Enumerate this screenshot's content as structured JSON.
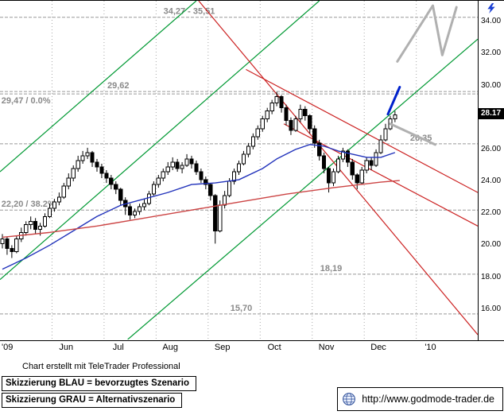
{
  "footer": {
    "note": "Chart erstellt mit TeleTrader Professional",
    "legend_blue": "Skizzierung BLAU = bevorzugtes Szenario",
    "legend_gray": "Skizzierung GRAU = Alternativszenario",
    "url": "http://www.godmode-trader.de"
  },
  "chart_data": {
    "type": "candlestick",
    "title": "",
    "period_shown": "'09 (May) to '10 (Jan)",
    "candle_interval_days": 2,
    "ylim": [
      14.1,
      35.3
    ],
    "time_slots": 101,
    "last_price": 28.17,
    "last_price_label": "28.17",
    "y_ticks": [
      {
        "label": "34.00",
        "price": 34.0
      },
      {
        "label": "32.00",
        "price": 32.0
      },
      {
        "label": "30.00",
        "price": 30.0
      },
      {
        "label": "26.00",
        "price": 26.0
      },
      {
        "label": "24.00",
        "price": 24.0
      },
      {
        "label": "22.00",
        "price": 22.0
      },
      {
        "label": "20.00",
        "price": 20.0
      },
      {
        "label": "18.00",
        "price": 18.0
      },
      {
        "label": "16.00",
        "price": 16.0
      }
    ],
    "x_labels": [
      {
        "label": "'09",
        "slot": 0.5
      },
      {
        "label": "Jun",
        "slot": 14
      },
      {
        "label": "Jul",
        "slot": 25
      },
      {
        "label": "Aug",
        "slot": 36
      },
      {
        "label": "Sep",
        "slot": 47
      },
      {
        "label": "Oct",
        "slot": 58
      },
      {
        "label": "Nov",
        "slot": 69
      },
      {
        "label": "Dec",
        "slot": 80
      },
      {
        "label": "'10",
        "slot": 91
      }
    ],
    "month_gridline_slots": [
      11,
      22,
      33,
      44,
      55,
      66,
      77,
      88
    ],
    "levels": [
      {
        "price": 34.27,
        "label": "34,27 - 35,51",
        "label_slot": 40,
        "anchor": "middle",
        "label_below": false
      },
      {
        "price": 29.62,
        "label": "29,62",
        "label_slot": 25,
        "anchor": "middle",
        "label_below": false
      },
      {
        "price": 29.47,
        "label": "29,47 / 0.0%",
        "label_slot": 0.3,
        "anchor": "start",
        "label_below": true
      },
      {
        "price": 26.35,
        "label": "26,35",
        "label_slot": 89,
        "anchor": "middle",
        "label_below": false
      },
      {
        "price": 22.2,
        "label": "22,20 / 38.2%",
        "label_slot": 0.3,
        "anchor": "start",
        "label_below": false
      },
      {
        "price": 18.19,
        "label": "18,19",
        "label_slot": 70,
        "anchor": "middle",
        "label_below": false
      },
      {
        "price": 15.7,
        "label": "15,70",
        "label_slot": 51,
        "anchor": "middle",
        "label_below": false
      }
    ],
    "trendlines": [
      {
        "color": "green",
        "points": [
          [
            0,
            24.6
          ],
          [
            41.5,
            35.3
          ]
        ]
      },
      {
        "color": "green",
        "points": [
          [
            0,
            17.85
          ],
          [
            67.5,
            35.3
          ]
        ]
      },
      {
        "color": "green",
        "points": [
          [
            27,
            14.1
          ],
          [
            101,
            32.9
          ]
        ]
      },
      {
        "color": "red",
        "points": [
          [
            42,
            35.3
          ],
          [
            101,
            14.4
          ]
        ]
      },
      {
        "color": "red",
        "points": [
          [
            52,
            31.0
          ],
          [
            101,
            23.3
          ]
        ]
      },
      {
        "color": "red",
        "points": [
          [
            60,
            27.6
          ],
          [
            101,
            21.2
          ]
        ]
      }
    ],
    "moving_averages": [
      {
        "name": "ma-fast-blue",
        "color": "#2233bb",
        "points": [
          [
            0,
            18.5
          ],
          [
            5,
            19.2
          ],
          [
            10,
            20.0
          ],
          [
            15,
            20.9
          ],
          [
            20,
            21.8
          ],
          [
            25,
            22.5
          ],
          [
            30,
            22.9
          ],
          [
            35,
            23.3
          ],
          [
            40,
            23.8
          ],
          [
            45,
            23.9
          ],
          [
            50,
            24.1
          ],
          [
            55,
            24.8
          ],
          [
            58,
            25.4
          ],
          [
            62,
            26.0
          ],
          [
            65,
            26.3
          ],
          [
            68,
            26.2
          ],
          [
            71,
            25.9
          ],
          [
            74,
            25.7
          ],
          [
            77,
            25.5
          ],
          [
            80,
            25.5
          ],
          [
            83,
            25.8
          ]
        ]
      },
      {
        "name": "ma-slow-red",
        "color": "#cc4444",
        "points": [
          [
            0,
            20.5
          ],
          [
            10,
            20.8
          ],
          [
            20,
            21.2
          ],
          [
            30,
            21.7
          ],
          [
            40,
            22.2
          ],
          [
            50,
            22.7
          ],
          [
            60,
            23.2
          ],
          [
            70,
            23.6
          ],
          [
            80,
            23.95
          ],
          [
            84,
            24.05
          ]
        ]
      }
    ],
    "sketches": [
      {
        "name": "preferred-blue",
        "color": "#0022cc",
        "width": 3,
        "points": [
          [
            82,
            28.2
          ],
          [
            84.5,
            29.9
          ]
        ]
      },
      {
        "name": "alternative-gray-target",
        "color": "#b0b0b0",
        "width": 3,
        "points": [
          [
            84,
            31.5
          ],
          [
            91.5,
            35.0
          ],
          [
            93.5,
            31.9
          ],
          [
            96.5,
            34.9
          ]
        ]
      },
      {
        "name": "alternative-gray-pullback",
        "color": "#b0b0b0",
        "width": 3,
        "points": [
          [
            82.5,
            27.6
          ],
          [
            92,
            26.3
          ]
        ]
      }
    ],
    "candles": [
      [
        20.1,
        20.7,
        19.8,
        20.4
      ],
      [
        20.4,
        20.5,
        19.4,
        19.8
      ],
      [
        19.8,
        20.0,
        19.2,
        19.6
      ],
      [
        19.6,
        20.6,
        19.5,
        20.4
      ],
      [
        20.4,
        21.1,
        20.2,
        20.8
      ],
      [
        20.8,
        21.5,
        20.6,
        21.3
      ],
      [
        21.3,
        21.8,
        21.0,
        21.5
      ],
      [
        21.5,
        21.7,
        20.7,
        21.0
      ],
      [
        21.0,
        21.4,
        20.6,
        21.2
      ],
      [
        21.2,
        22.0,
        21.1,
        21.8
      ],
      [
        21.8,
        22.6,
        21.7,
        22.3
      ],
      [
        22.3,
        22.9,
        22.1,
        22.7
      ],
      [
        22.7,
        23.3,
        22.5,
        23.0
      ],
      [
        23.0,
        23.9,
        22.9,
        23.7
      ],
      [
        23.7,
        24.5,
        23.5,
        24.2
      ],
      [
        24.2,
        25.0,
        24.0,
        24.8
      ],
      [
        24.8,
        25.6,
        24.6,
        25.3
      ],
      [
        25.3,
        25.9,
        25.1,
        25.6
      ],
      [
        25.6,
        26.1,
        25.4,
        25.8
      ],
      [
        25.8,
        25.9,
        24.9,
        25.2
      ],
      [
        25.2,
        25.4,
        24.6,
        24.9
      ],
      [
        24.9,
        25.1,
        24.2,
        24.5
      ],
      [
        24.5,
        24.7,
        23.9,
        24.2
      ],
      [
        24.2,
        24.4,
        23.5,
        23.8
      ],
      [
        23.8,
        24.0,
        23.2,
        23.5
      ],
      [
        23.5,
        23.6,
        22.5,
        22.8
      ],
      [
        22.8,
        23.0,
        21.9,
        22.4
      ],
      [
        22.4,
        22.6,
        21.6,
        21.9
      ],
      [
        21.9,
        22.3,
        21.7,
        22.1
      ],
      [
        22.1,
        22.6,
        21.9,
        22.4
      ],
      [
        22.4,
        22.9,
        22.2,
        22.6
      ],
      [
        22.6,
        23.4,
        22.5,
        23.2
      ],
      [
        23.2,
        24.0,
        23.1,
        23.8
      ],
      [
        23.8,
        24.4,
        23.6,
        24.2
      ],
      [
        24.2,
        24.8,
        24.0,
        24.6
      ],
      [
        24.6,
        25.2,
        24.4,
        24.9
      ],
      [
        24.9,
        25.5,
        24.7,
        25.2
      ],
      [
        25.2,
        25.4,
        24.6,
        24.8
      ],
      [
        24.8,
        25.2,
        24.5,
        25.0
      ],
      [
        25.0,
        25.7,
        24.9,
        25.4
      ],
      [
        25.4,
        25.6,
        24.8,
        25.1
      ],
      [
        25.1,
        25.3,
        24.4,
        24.6
      ],
      [
        24.6,
        24.8,
        23.9,
        24.1
      ],
      [
        24.1,
        24.3,
        23.5,
        23.8
      ],
      [
        23.8,
        23.9,
        22.8,
        23.1
      ],
      [
        23.1,
        23.2,
        20.1,
        20.9
      ],
      [
        20.9,
        22.8,
        20.8,
        22.5
      ],
      [
        22.5,
        23.4,
        22.3,
        23.1
      ],
      [
        23.1,
        24.2,
        23.0,
        24.0
      ],
      [
        24.0,
        24.8,
        23.8,
        24.6
      ],
      [
        24.6,
        25.3,
        24.4,
        25.1
      ],
      [
        25.1,
        25.9,
        25.0,
        25.7
      ],
      [
        25.7,
        26.4,
        25.5,
        26.2
      ],
      [
        26.2,
        27.0,
        26.0,
        26.8
      ],
      [
        26.8,
        27.5,
        26.6,
        27.3
      ],
      [
        27.3,
        28.1,
        27.1,
        27.9
      ],
      [
        27.9,
        28.6,
        27.7,
        28.4
      ],
      [
        28.4,
        29.1,
        28.2,
        28.9
      ],
      [
        28.9,
        29.6,
        28.7,
        29.3
      ],
      [
        29.3,
        29.4,
        28.3,
        28.6
      ],
      [
        28.6,
        28.8,
        27.5,
        27.8
      ],
      [
        27.8,
        28.0,
        26.9,
        27.2
      ],
      [
        27.2,
        28.1,
        27.1,
        27.9
      ],
      [
        27.9,
        28.8,
        27.7,
        28.5
      ],
      [
        28.5,
        28.7,
        27.8,
        28.1
      ],
      [
        28.1,
        28.2,
        27.0,
        27.3
      ],
      [
        27.3,
        27.5,
        26.1,
        26.4
      ],
      [
        26.4,
        26.6,
        25.3,
        25.6
      ],
      [
        25.6,
        25.8,
        24.5,
        24.8
      ],
      [
        24.8,
        24.9,
        23.3,
        23.9
      ],
      [
        23.9,
        24.8,
        23.7,
        24.6
      ],
      [
        24.6,
        25.6,
        24.5,
        25.4
      ],
      [
        25.4,
        26.1,
        25.2,
        25.9
      ],
      [
        25.9,
        26.0,
        24.9,
        25.2
      ],
      [
        25.2,
        25.4,
        24.1,
        24.4
      ],
      [
        24.4,
        24.5,
        23.5,
        23.9
      ],
      [
        23.9,
        24.9,
        23.8,
        24.7
      ],
      [
        24.7,
        25.5,
        24.5,
        25.3
      ],
      [
        25.3,
        25.5,
        24.7,
        25.0
      ],
      [
        25.0,
        26.0,
        24.9,
        25.8
      ],
      [
        25.8,
        26.9,
        25.7,
        26.6
      ],
      [
        26.6,
        27.6,
        26.5,
        27.3
      ],
      [
        27.3,
        28.1,
        27.2,
        27.9
      ],
      [
        27.9,
        28.4,
        27.7,
        28.17
      ]
    ],
    "colors": {
      "grid": "#a8a8a8",
      "level": "#999999",
      "level_text": "#8a8a8a",
      "green": "#009933",
      "red": "#cc2222",
      "candle_up_fill": "#ffffff",
      "candle_down_fill": "#000000",
      "candle_stroke": "#000000",
      "marker_bg": "#000000",
      "marker_text": "#ffffff"
    }
  }
}
